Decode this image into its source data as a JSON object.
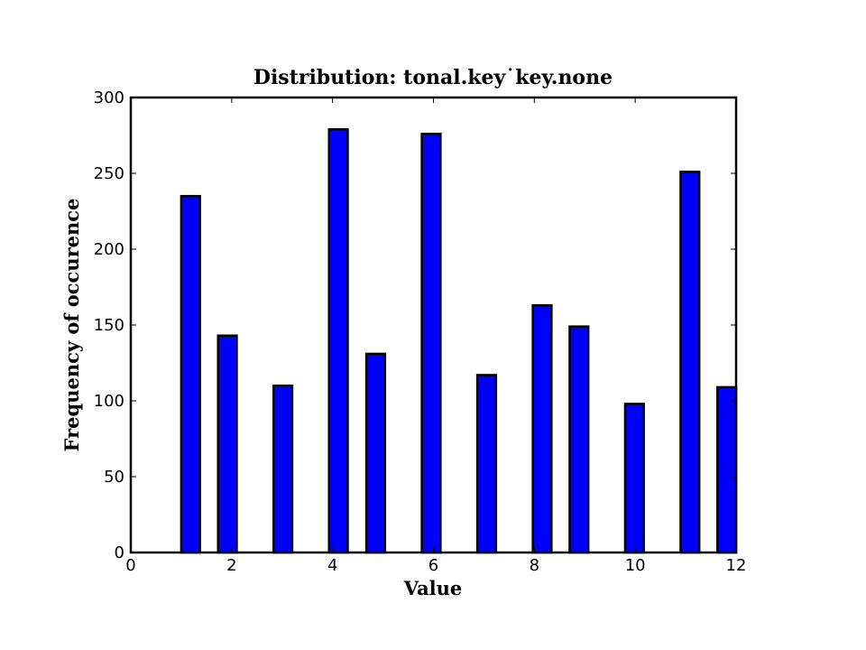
{
  "chart_data": {
    "type": "bar",
    "title": "Distribution: tonal.key˙key.none",
    "xlabel": "Value",
    "ylabel": "Frequency of occurence",
    "xlim": [
      0,
      12
    ],
    "ylim": [
      0,
      300
    ],
    "x_ticks": [
      "0",
      "2",
      "4",
      "6",
      "8",
      "10",
      "12"
    ],
    "y_ticks": [
      "0",
      "50",
      "100",
      "150",
      "200",
      "250",
      "300"
    ],
    "bar_width": 0.37,
    "x": [
      1.0,
      1.73,
      2.83,
      3.93,
      4.67,
      5.77,
      6.87,
      7.97,
      8.7,
      9.8,
      10.9,
      11.63
    ],
    "values": [
      235,
      143,
      110,
      279,
      131,
      276,
      117,
      163,
      149,
      98,
      251,
      109
    ],
    "bar_color": "#0000ff",
    "edge_color": "#000000",
    "grid": false
  }
}
